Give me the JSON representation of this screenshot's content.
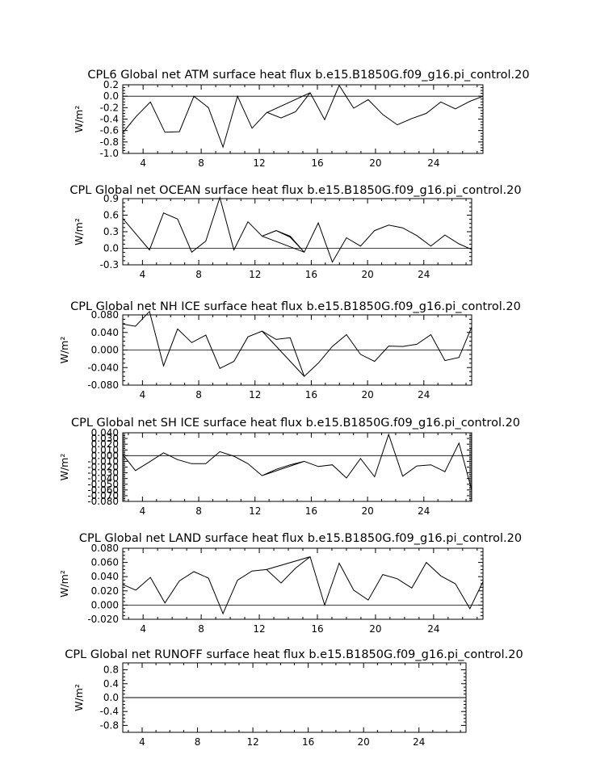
{
  "chart_data": [
    {
      "type": "line",
      "title": "CPL6 Global net ATM surface heat flux b.e15.B1850G.f09_g16.pi_control.20",
      "ylabel": "W/m²",
      "xlim": [
        2.6,
        27.4
      ],
      "ylim": [
        -1.0,
        0.2
      ],
      "yticks": [
        0.2,
        0.0,
        -0.2,
        -0.4,
        -0.6,
        -0.8,
        -1.0
      ],
      "ytick_labels": [
        "0.2",
        "0.0",
        "-0.2",
        "-0.4",
        "-0.6",
        "-0.8",
        "-1.0"
      ],
      "xticks": [
        4,
        8,
        12,
        16,
        20,
        24
      ],
      "xtick_labels": [
        "4",
        "8",
        "12",
        "16",
        "20",
        "24"
      ],
      "zero_line": true,
      "x": [
        2.6,
        3.5,
        4.5,
        5.5,
        6.5,
        7.5,
        8.5,
        9.5,
        10.5,
        11.5,
        12.5,
        15.5,
        14.5,
        13.5,
        12.5,
        13.5,
        14.5,
        15.5,
        16.5,
        17.5,
        18.5,
        19.5,
        20.5,
        21.5,
        22.5,
        23.5,
        24.5,
        25.5,
        26.5,
        27.4
      ],
      "series": [
        {
          "values": [
            -0.64,
            -0.36,
            -0.1,
            -0.63,
            -0.62,
            0.0,
            -0.2,
            -0.89,
            0.0,
            -0.56,
            -0.29,
            0.06,
            -0.27,
            -0.38,
            -0.28,
            -0.38,
            -0.27,
            0.06,
            -0.41,
            0.19,
            -0.21,
            -0.06,
            -0.32,
            -0.5,
            -0.39,
            -0.3,
            -0.1,
            -0.22,
            -0.09,
            0.0
          ]
        }
      ]
    },
    {
      "type": "line",
      "title": "CPL Global net OCEAN surface heat flux b.e15.B1850G.f09_g16.pi_control.20",
      "ylabel": "W/m²",
      "xlim": [
        2.6,
        27.4
      ],
      "ylim": [
        -0.3,
        0.9
      ],
      "yticks": [
        0.9,
        0.6,
        0.3,
        0.0,
        -0.3
      ],
      "ytick_labels": [
        "0.9",
        "0.6",
        "0.3",
        "0.0",
        "-0.3"
      ],
      "xticks": [
        4,
        8,
        12,
        16,
        20,
        24
      ],
      "xtick_labels": [
        "4",
        "8",
        "12",
        "16",
        "20",
        "24"
      ],
      "zero_line": true,
      "x": [
        2.6,
        3.5,
        4.5,
        5.5,
        6.5,
        7.5,
        8.5,
        9.5,
        10.5,
        11.5,
        12.5,
        15.5,
        14.5,
        13.5,
        12.5,
        13.5,
        14.5,
        15.5,
        16.5,
        17.5,
        18.5,
        19.5,
        20.5,
        21.5,
        22.5,
        23.5,
        24.5,
        25.5,
        26.5,
        27.4
      ],
      "series": [
        {
          "values": [
            0.54,
            0.27,
            -0.03,
            0.64,
            0.53,
            -0.07,
            0.13,
            0.92,
            -0.03,
            0.48,
            0.22,
            -0.07,
            0.22,
            0.32,
            0.22,
            0.32,
            0.2,
            -0.07,
            0.46,
            -0.25,
            0.19,
            0.04,
            0.32,
            0.42,
            0.37,
            0.23,
            0.04,
            0.24,
            0.08,
            -0.02
          ]
        }
      ]
    },
    {
      "type": "line",
      "title": "CPL Global net NH ICE surface heat flux b.e15.B1850G.f09_g16.pi_control.20",
      "ylabel": "W/m²",
      "xlim": [
        2.6,
        27.4
      ],
      "ylim": [
        -0.08,
        0.08
      ],
      "yticks": [
        0.08,
        0.04,
        0.0,
        -0.04,
        -0.08
      ],
      "ytick_labels": [
        "0.080",
        "0.040",
        "0.000",
        "-0.040",
        "-0.080"
      ],
      "xticks": [
        4,
        8,
        12,
        16,
        20,
        24
      ],
      "xtick_labels": [
        "4",
        "8",
        "12",
        "16",
        "20",
        "24"
      ],
      "zero_line": true,
      "x": [
        2.6,
        3.5,
        4.5,
        5.5,
        6.5,
        7.5,
        8.5,
        9.5,
        10.5,
        11.5,
        12.5,
        15.5,
        14.5,
        13.5,
        12.5,
        13.5,
        14.5,
        15.5,
        16.5,
        17.5,
        18.5,
        19.5,
        20.5,
        21.5,
        22.5,
        23.5,
        24.5,
        25.5,
        26.5,
        27.4
      ],
      "series": [
        {
          "values": [
            0.059,
            0.054,
            0.088,
            -0.036,
            0.048,
            0.017,
            0.034,
            -0.042,
            -0.026,
            0.03,
            0.043,
            -0.06,
            0.028,
            0.024,
            0.043,
            0.024,
            0.028,
            -0.06,
            -0.03,
            0.008,
            0.035,
            -0.01,
            -0.026,
            0.009,
            0.008,
            0.013,
            0.035,
            -0.024,
            -0.017,
            0.052
          ]
        }
      ]
    },
    {
      "type": "line",
      "title": "CPL Global net SH ICE surface heat flux b.e15.B1850G.f09_g16.pi_control.20",
      "ylabel": "W/m²",
      "xlim": [
        2.6,
        27.4
      ],
      "ylim": [
        -0.08,
        0.04
      ],
      "yticks": [
        0.04,
        0.03,
        0.02,
        0.01,
        0.0,
        -0.01,
        -0.02,
        -0.03,
        -0.04,
        -0.05,
        -0.06,
        -0.07,
        -0.08
      ],
      "ytick_labels": [
        "0.040",
        "0.030",
        "0.020",
        "0.010",
        "0.000",
        "-0.010",
        "-0.020",
        "-0.030",
        "-0.040",
        "-0.050",
        "-0.060",
        "-0.070",
        "-0.080"
      ],
      "xticks": [
        4,
        8,
        12,
        16,
        20,
        24
      ],
      "xtick_labels": [
        "4",
        "8",
        "12",
        "16",
        "20",
        "24"
      ],
      "zero_line": true,
      "x": [
        2.6,
        3.5,
        4.5,
        5.5,
        6.5,
        7.5,
        8.5,
        9.5,
        10.5,
        11.5,
        12.5,
        15.5,
        14.5,
        13.5,
        12.5,
        13.5,
        14.5,
        15.5,
        16.5,
        17.5,
        18.5,
        19.5,
        20.5,
        21.5,
        22.5,
        23.5,
        24.5,
        25.5,
        26.5,
        27.4
      ],
      "series": [
        {
          "values": [
            0.002,
            -0.026,
            -0.011,
            0.005,
            -0.007,
            -0.014,
            -0.014,
            0.007,
            -0.001,
            -0.014,
            -0.035,
            -0.01,
            -0.016,
            -0.024,
            -0.035,
            -0.024,
            -0.016,
            -0.01,
            -0.019,
            -0.016,
            -0.039,
            -0.005,
            -0.037,
            0.037,
            -0.036,
            -0.018,
            -0.016,
            -0.028,
            0.022,
            -0.06
          ]
        }
      ]
    },
    {
      "type": "line",
      "title": "CPL Global net LAND surface heat flux b.e15.B1850G.f09_g16.pi_control.20",
      "ylabel": "W/m²",
      "xlim": [
        2.6,
        27.4
      ],
      "ylim": [
        -0.02,
        0.08
      ],
      "yticks": [
        0.08,
        0.06,
        0.04,
        0.02,
        0.0,
        -0.02
      ],
      "ytick_labels": [
        "0.080",
        "0.060",
        "0.040",
        "0.020",
        "0.000",
        "-0.020"
      ],
      "xticks": [
        4,
        8,
        12,
        16,
        20,
        24
      ],
      "xtick_labels": [
        "4",
        "8",
        "12",
        "16",
        "20",
        "24"
      ],
      "zero_line": true,
      "x": [
        2.6,
        3.5,
        4.5,
        5.5,
        6.5,
        7.5,
        8.5,
        9.5,
        10.5,
        11.5,
        12.5,
        15.5,
        14.5,
        13.5,
        12.5,
        13.5,
        14.5,
        15.5,
        16.5,
        17.5,
        18.5,
        19.5,
        20.5,
        21.5,
        22.5,
        23.5,
        24.5,
        25.5,
        26.5,
        27.4
      ],
      "series": [
        {
          "values": [
            0.029,
            0.021,
            0.039,
            0.003,
            0.034,
            0.047,
            0.038,
            -0.012,
            0.035,
            0.048,
            0.05,
            0.068,
            0.052,
            0.031,
            0.05,
            0.031,
            0.052,
            0.068,
            0.0,
            0.059,
            0.021,
            0.007,
            0.043,
            0.037,
            0.024,
            0.06,
            0.041,
            0.03,
            -0.005,
            0.033
          ]
        }
      ]
    },
    {
      "type": "line",
      "title": "CPL Global net RUNOFF surface heat flux b.e15.B1850G.f09_g16.pi_control.20",
      "ylabel": "W/m²",
      "xlim": [
        2.6,
        27.4
      ],
      "ylim": [
        -1.0,
        1.0
      ],
      "yticks": [
        0.8,
        0.4,
        0.0,
        -0.4,
        -0.8
      ],
      "ytick_labels": [
        "0.8",
        "0.4",
        "0.0",
        "-0.4",
        "-0.8"
      ],
      "xticks": [
        4,
        8,
        12,
        16,
        20,
        24
      ],
      "xtick_labels": [
        "4",
        "8",
        "12",
        "16",
        "20",
        "24"
      ],
      "zero_line": true,
      "x": [
        2.6,
        27.4
      ],
      "series": [
        {
          "values": [
            0.0,
            0.0
          ]
        }
      ]
    }
  ]
}
